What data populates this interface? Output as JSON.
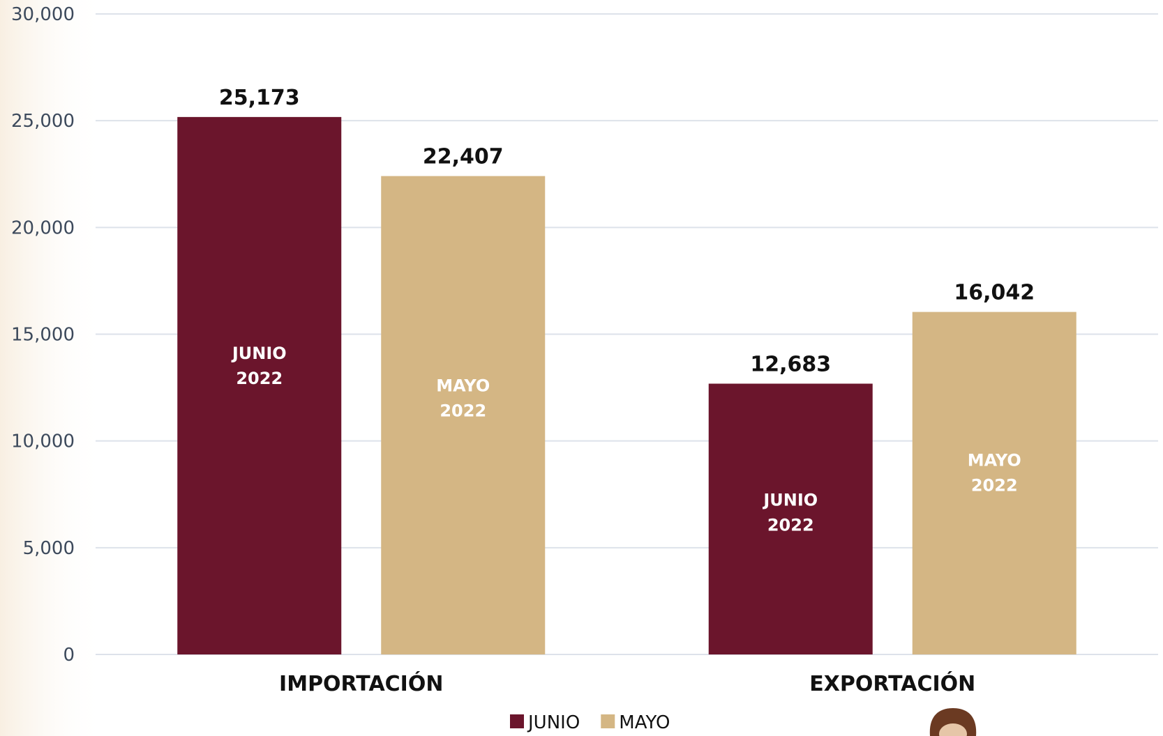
{
  "chart_data": {
    "type": "bar",
    "categories": [
      "IMPORTACIÓN",
      "EXPORTACIÓN"
    ],
    "series": [
      {
        "name": "JUNIO",
        "color": "#6b152c",
        "values": [
          25173,
          12683
        ],
        "value_labels": [
          "25,173",
          "12,683"
        ],
        "inner_label": [
          "JUNIO",
          "2022"
        ]
      },
      {
        "name": "MAYO",
        "color": "#d4b684",
        "values": [
          22407,
          16042
        ],
        "value_labels": [
          "22,407",
          "16,042"
        ],
        "inner_label": [
          "MAYO",
          "2022"
        ]
      }
    ],
    "yticks": [
      0,
      5000,
      10000,
      15000,
      20000,
      25000,
      30000
    ],
    "ytick_labels": [
      "0",
      "5,000",
      "10,000",
      "15,000",
      "20,000",
      "25,000",
      "30,000"
    ],
    "ylim": [
      0,
      30000
    ],
    "grid": true,
    "legend_position": "bottom"
  }
}
